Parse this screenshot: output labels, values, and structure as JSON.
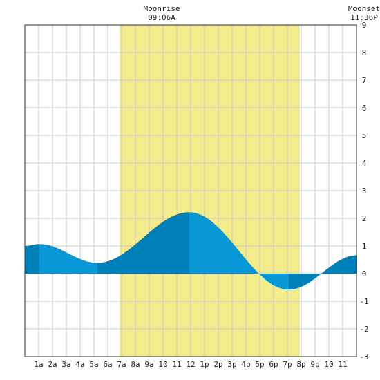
{
  "header": {
    "moonrise_label": "Moonrise",
    "moonrise_time": "09:06A",
    "moonset_label": "Moonset",
    "moonset_time": "11:36P"
  },
  "chart_data": {
    "type": "area",
    "title": "",
    "xlabel": "",
    "ylabel": "",
    "x_range_hours": [
      0,
      24
    ],
    "ylim": [
      -3,
      9
    ],
    "y_ticks": [
      -3,
      -2,
      -1,
      0,
      1,
      2,
      3,
      4,
      5,
      6,
      7,
      8,
      9
    ],
    "x_tick_labels": [
      "1a",
      "2a",
      "3a",
      "4a",
      "5a",
      "6a",
      "7a",
      "8a",
      "9a",
      "10",
      "11",
      "12",
      "1p",
      "2p",
      "3p",
      "4p",
      "5p",
      "6p",
      "7p",
      "8p",
      "9p",
      "10",
      "11"
    ],
    "grid": true,
    "daylight_hours": [
      6.85,
      19.9
    ],
    "tide_points": [
      {
        "hour": 0,
        "height": 1.0
      },
      {
        "hour": 1.05,
        "height": 1.07
      },
      {
        "hour": 5.25,
        "height": 0.39
      },
      {
        "hour": 11.9,
        "height": 2.22
      },
      {
        "hour": 19.1,
        "height": -0.58
      },
      {
        "hour": 24,
        "height": 0.66
      }
    ],
    "extrema_hours": [
      1.05,
      5.25,
      11.9,
      19.1
    ],
    "colors": {
      "tide_light": "#0898d8",
      "tide_dark": "#0080b8",
      "daylight": "#f2ec8c",
      "grid": "#c8c8c8",
      "border": "#333333"
    }
  }
}
